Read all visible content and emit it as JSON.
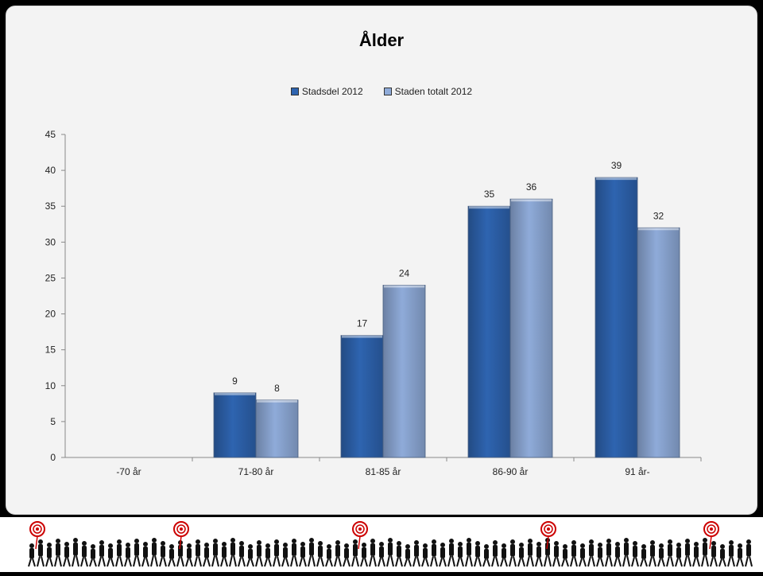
{
  "chart_data": {
    "type": "bar",
    "title": "Ålder",
    "xlabel": "",
    "ylabel": "",
    "categories": [
      "-70 år",
      "71-80 år",
      "81-85 år",
      "86-90 år",
      "91 år-"
    ],
    "series": [
      {
        "name": "Stadsdel 2012",
        "values": [
          null,
          9,
          17,
          35,
          39
        ],
        "color": "#2e64b0"
      },
      {
        "name": "Staden totalt 2012",
        "values": [
          null,
          8,
          24,
          36,
          32
        ],
        "color": "#8fabd9"
      }
    ],
    "ylim": [
      0,
      45
    ],
    "yticks": [
      0,
      5,
      10,
      15,
      20,
      25,
      30,
      35,
      40,
      45
    ],
    "grid": false,
    "legend_position": "top-center"
  }
}
